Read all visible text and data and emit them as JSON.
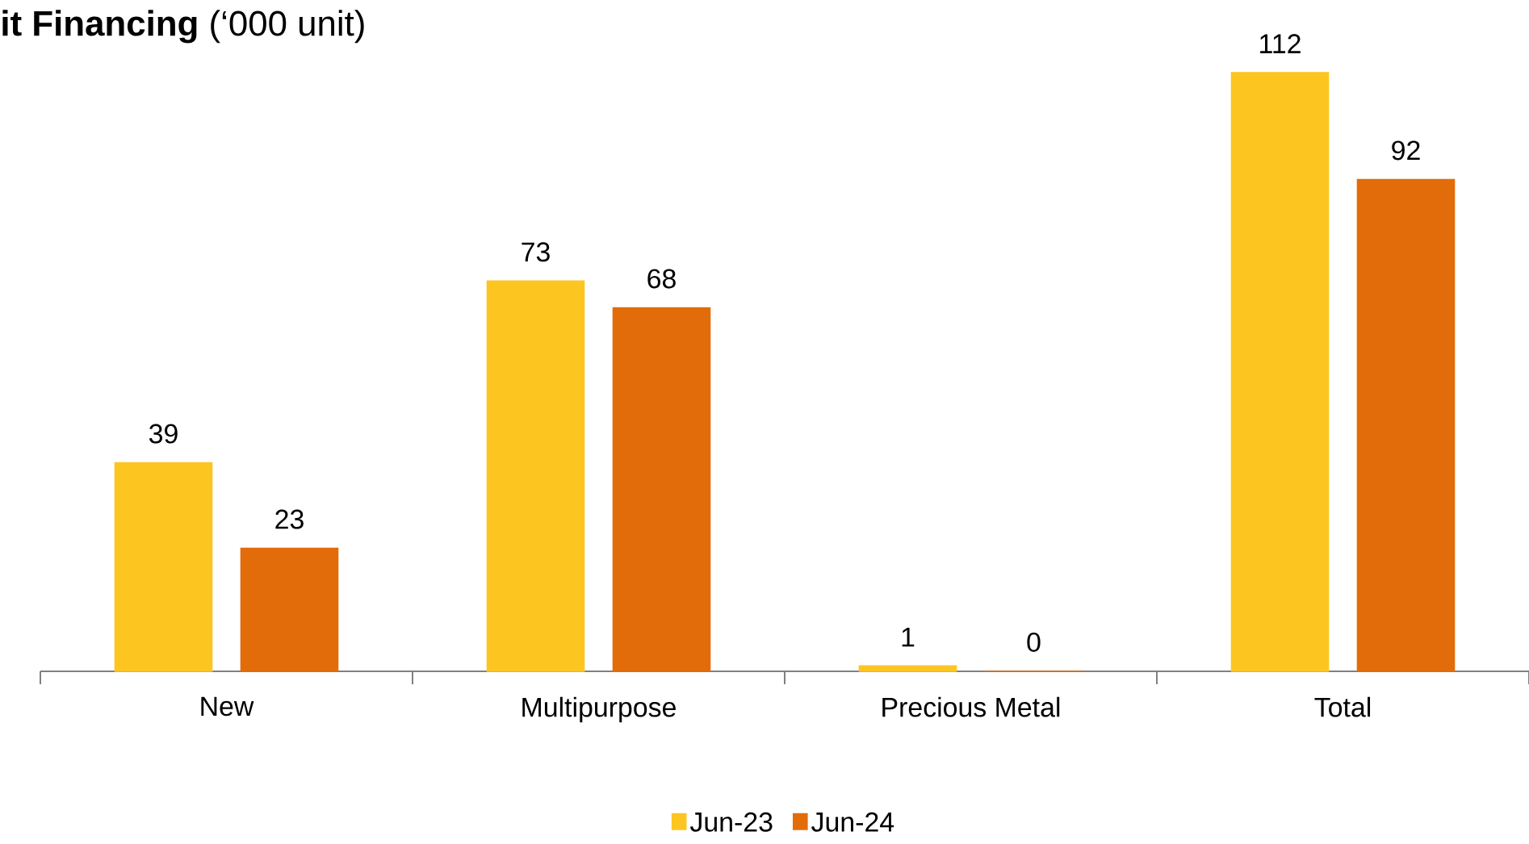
{
  "chart_data": {
    "type": "bar",
    "title": "**it Financing** (‘000 unit)",
    "categories": [
      "New",
      "Multipurpose",
      "Precious Metal",
      "Total"
    ],
    "series": [
      {
        "name": "Jun-23",
        "color": "#fdc520",
        "values": [
          39,
          73,
          1,
          112
        ]
      },
      {
        "name": "Jun-24",
        "color": "#e36c0a",
        "values": [
          23,
          68,
          0,
          92
        ]
      }
    ],
    "data_labels": true,
    "legend": "bottom"
  }
}
